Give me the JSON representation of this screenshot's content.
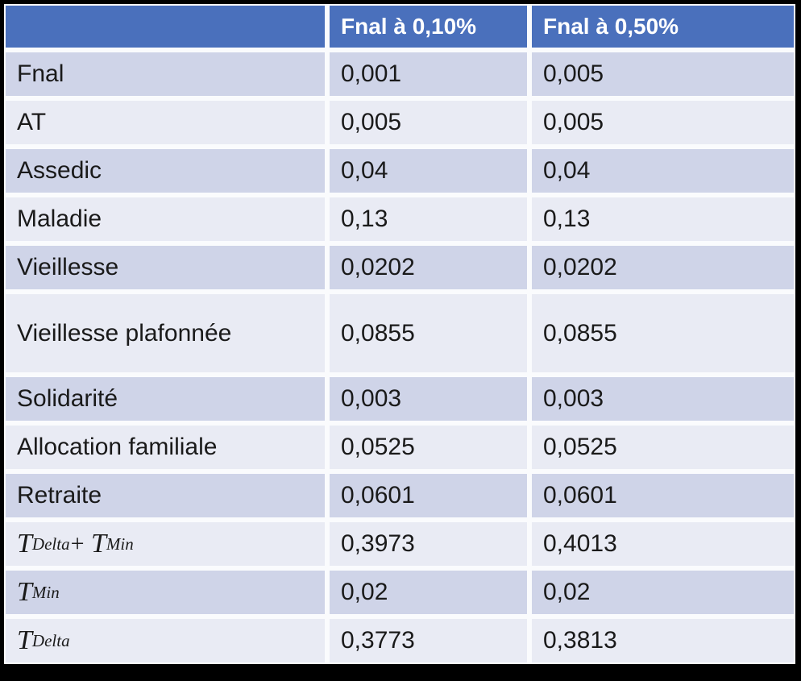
{
  "colors": {
    "frame": "#000000",
    "grid_line": "#fafbfd",
    "header_bg": "#4a70bc",
    "header_text": "#ffffff",
    "band_dark": "#cfd4e8",
    "band_light": "#e9ebf4",
    "body_text": "#1a1a1a"
  },
  "table": {
    "columns": [
      {
        "label": ""
      },
      {
        "label": "Fnal à 0,10%"
      },
      {
        "label": "Fnal à 0,50%"
      }
    ],
    "rows": [
      {
        "label": "Fnal",
        "values": [
          "0,001",
          "0,005"
        ]
      },
      {
        "label": "AT",
        "values": [
          "0,005",
          "0,005"
        ]
      },
      {
        "label": "Assedic",
        "values": [
          "0,04",
          "0,04"
        ]
      },
      {
        "label": "Maladie",
        "values": [
          "0,13",
          "0,13"
        ]
      },
      {
        "label": "Vieillesse",
        "values": [
          "0,0202",
          "0,0202"
        ]
      },
      {
        "label": "Vieillesse plafonnée",
        "values": [
          "0,0855",
          "0,0855"
        ]
      },
      {
        "label": "Solidarité",
        "values": [
          "0,003",
          "0,003"
        ]
      },
      {
        "label": "Allocation familiale",
        "values": [
          "0,0525",
          "0,0525"
        ]
      },
      {
        "label": "Retraite",
        "values": [
          "0,0601",
          "0,0601"
        ]
      },
      {
        "label_math": [
          {
            "text": "T",
            "kind": "var"
          },
          {
            "text": "Delta",
            "kind": "sub"
          },
          {
            "text": "+ ",
            "kind": "op"
          },
          {
            "text": "T",
            "kind": "var"
          },
          {
            "text": "Min",
            "kind": "sub"
          }
        ],
        "label_plain": "T_Delta + T_Min",
        "values": [
          "0,3973",
          "0,4013"
        ]
      },
      {
        "label_math": [
          {
            "text": "T",
            "kind": "var"
          },
          {
            "text": "Min",
            "kind": "sub"
          }
        ],
        "label_plain": "T_Min",
        "values": [
          "0,02",
          "0,02"
        ]
      },
      {
        "label_math": [
          {
            "text": "T",
            "kind": "var"
          },
          {
            "text": "Delta",
            "kind": "sub"
          }
        ],
        "label_plain": "T_Delta",
        "values": [
          "0,3773",
          "0,3813"
        ]
      }
    ]
  },
  "chart_data": {
    "type": "table",
    "columns": [
      "",
      "Fnal à 0,10%",
      "Fnal à 0,50%"
    ],
    "rows": [
      [
        "Fnal",
        "0,001",
        "0,005"
      ],
      [
        "AT",
        "0,005",
        "0,005"
      ],
      [
        "Assedic",
        "0,04",
        "0,04"
      ],
      [
        "Maladie",
        "0,13",
        "0,13"
      ],
      [
        "Vieillesse",
        "0,0202",
        "0,0202"
      ],
      [
        "Vieillesse plafonnée",
        "0,0855",
        "0,0855"
      ],
      [
        "Solidarité",
        "0,003",
        "0,003"
      ],
      [
        "Allocation familiale",
        "0,0525",
        "0,0525"
      ],
      [
        "Retraite",
        "0,0601",
        "0,0601"
      ],
      [
        "T_Delta + T_Min",
        "0,3973",
        "0,4013"
      ],
      [
        "T_Min",
        "0,02",
        "0,02"
      ],
      [
        "T_Delta",
        "0,3773",
        "0,3813"
      ]
    ]
  }
}
